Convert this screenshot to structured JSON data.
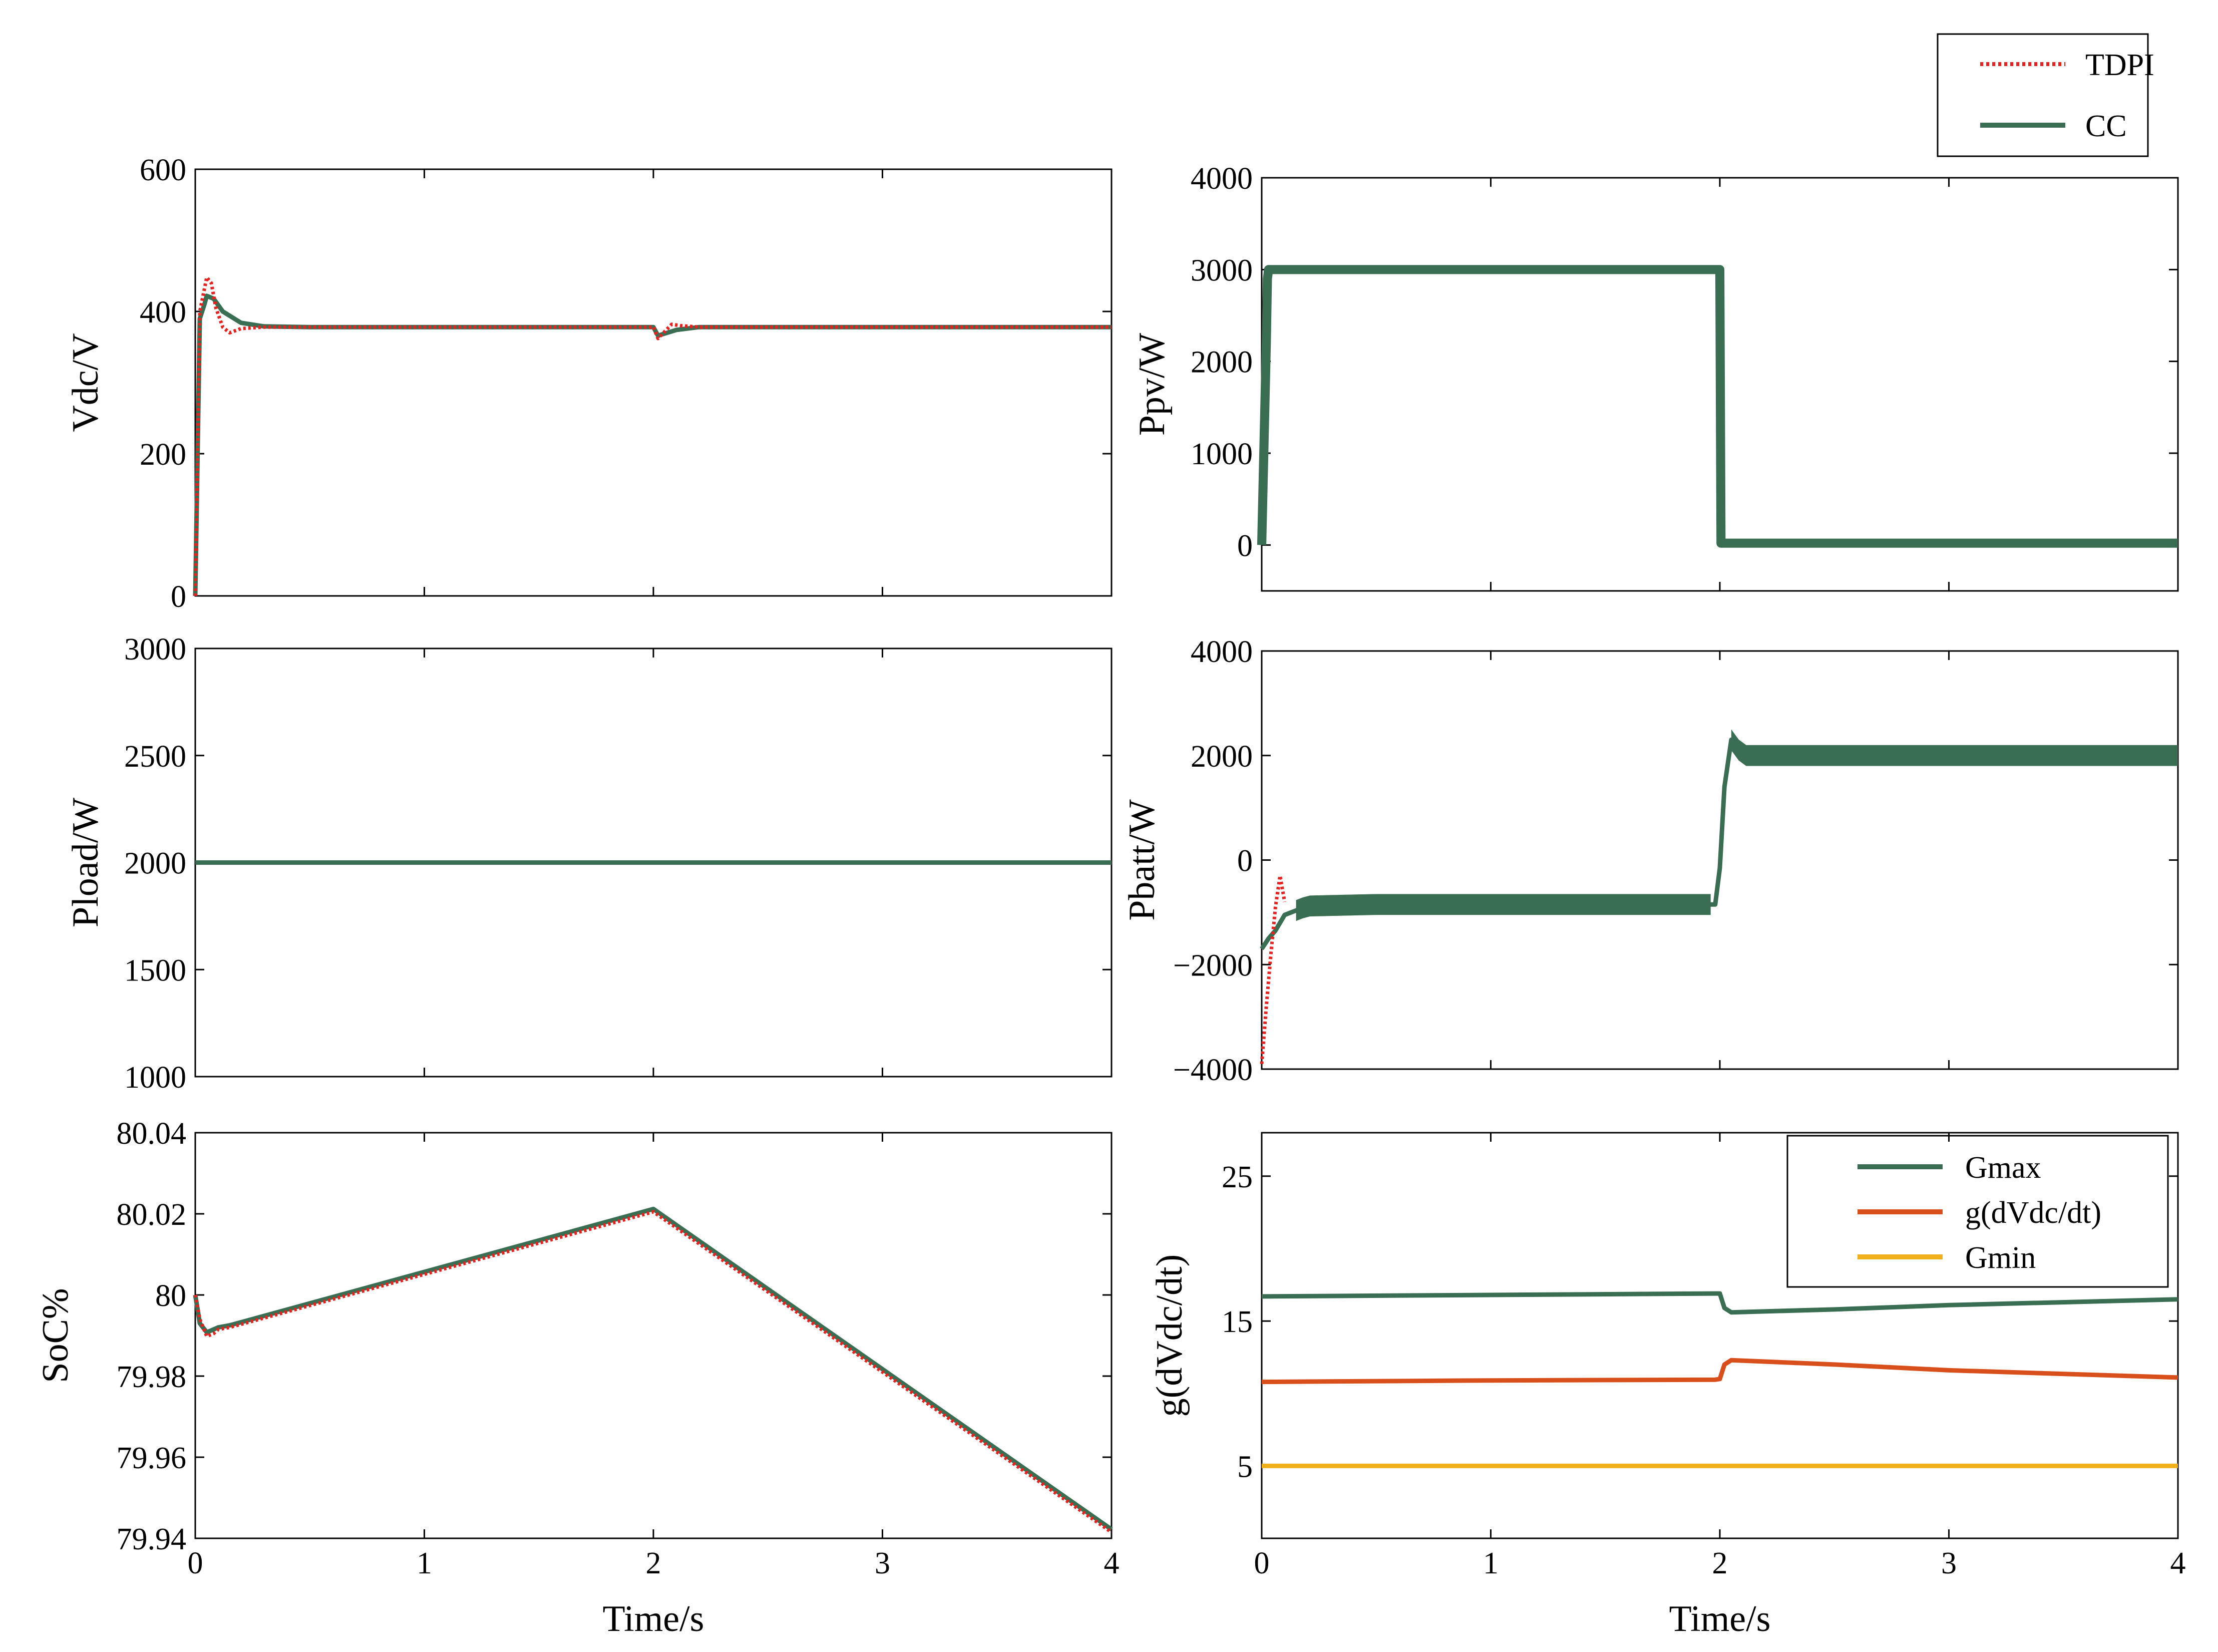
{
  "figure": {
    "legend": {
      "items": [
        {
          "name": "TDPI",
          "color": "#e8211e",
          "style": "dotted"
        },
        {
          "name": "CC",
          "color": "#3a6e52",
          "style": "solid"
        }
      ]
    },
    "colors": {
      "tdpi": "#e8211e",
      "cc": "#3a6e52",
      "gmax": "#3a6e52",
      "gdvdc": "#d94f1c",
      "gmin": "#f0b01c"
    }
  },
  "chart_data": [
    {
      "id": "vdc",
      "type": "line",
      "ylabel": "Vdc/V",
      "xlabel": "",
      "xlim": [
        0,
        4
      ],
      "ylim": [
        0,
        600
      ],
      "yticks": [
        0,
        200,
        400,
        600
      ],
      "xticks": [],
      "series": [
        {
          "name": "TDPI",
          "x": [
            0,
            0.02,
            0.04,
            0.05,
            0.07,
            0.09,
            0.12,
            0.15,
            0.2,
            0.3,
            0.5,
            1,
            1.5,
            1.98,
            2.0,
            2.02,
            2.05,
            2.08,
            2.12,
            2.2,
            3,
            4
          ],
          "y": [
            0,
            400,
            432,
            448,
            440,
            405,
            378,
            370,
            376,
            378,
            378,
            378,
            378,
            378,
            378,
            362,
            372,
            382,
            380,
            378,
            378,
            378
          ]
        },
        {
          "name": "CC",
          "x": [
            0,
            0.02,
            0.04,
            0.05,
            0.08,
            0.12,
            0.2,
            0.3,
            0.5,
            1,
            1.5,
            1.98,
            2.0,
            2.02,
            2.05,
            2.1,
            2.2,
            3,
            4
          ],
          "y": [
            0,
            390,
            410,
            422,
            418,
            400,
            384,
            379,
            378,
            378,
            378,
            378,
            378,
            366,
            369,
            374,
            378,
            378,
            378
          ]
        }
      ]
    },
    {
      "id": "ppv",
      "type": "line",
      "ylabel": "Ppv/W",
      "xlabel": "",
      "xlim": [
        0,
        4
      ],
      "ylim": [
        -500,
        4000
      ],
      "yticks": [
        0,
        1000,
        2000,
        3000,
        4000
      ],
      "xticks": [],
      "series": [
        {
          "name": "CC",
          "x": [
            0,
            0.02,
            0.025,
            0.03,
            0.05,
            0.1,
            2.0,
            2.005,
            4
          ],
          "y": [
            0,
            2200,
            2900,
            3000,
            3000,
            3000,
            3000,
            20,
            20
          ],
          "band": 25
        }
      ]
    },
    {
      "id": "pload",
      "type": "line",
      "ylabel": "Pload/W",
      "xlabel": "",
      "xlim": [
        0,
        4
      ],
      "ylim": [
        1000,
        3000
      ],
      "yticks": [
        1000,
        1500,
        2000,
        2500,
        3000
      ],
      "xticks": [],
      "series": [
        {
          "name": "CC",
          "x": [
            0,
            4
          ],
          "y": [
            2000,
            2000
          ]
        }
      ]
    },
    {
      "id": "pbatt",
      "type": "line",
      "ylabel": "Pbatt/W",
      "xlabel": "",
      "xlim": [
        0,
        4
      ],
      "ylim": [
        -4000,
        4000
      ],
      "yticks": [
        -4000,
        -2000,
        0,
        2000,
        4000
      ],
      "xticks": [],
      "series": [
        {
          "name": "TDPI",
          "x": [
            0,
            0.02,
            0.04,
            0.06,
            0.08,
            0.1
          ],
          "y": [
            -3900,
            -2800,
            -1800,
            -900,
            -300,
            -800
          ]
        },
        {
          "name": "CC",
          "x": [
            0,
            0.03,
            0.06,
            0.1,
            0.2,
            0.5,
            1,
            1.5,
            1.96,
            1.98,
            2.0,
            2.02,
            2.05,
            2.1,
            2.3,
            3,
            4
          ],
          "y": [
            -1700,
            -1500,
            -1350,
            -1050,
            -880,
            -850,
            -850,
            -850,
            -850,
            -850,
            -150,
            1400,
            2300,
            2000,
            2000,
            2000,
            2000
          ],
          "band": [
            0.15,
            1.96,
            400,
            2.05,
            4,
            400
          ]
        }
      ]
    },
    {
      "id": "soc",
      "type": "line",
      "ylabel": "SoC%",
      "xlabel": "Time/s",
      "xlim": [
        0,
        4
      ],
      "ylim": [
        79.94,
        80.04
      ],
      "yticks": [
        79.94,
        79.96,
        79.98,
        80,
        80.02,
        80.04
      ],
      "xticks": [
        0,
        1,
        2,
        3,
        4
      ],
      "series": [
        {
          "name": "TDPI",
          "x": [
            0,
            0.02,
            0.05,
            0.08,
            0.1,
            0.15,
            2.0,
            4
          ],
          "y": [
            80.0,
            79.994,
            79.9898,
            79.9905,
            79.9915,
            79.992,
            80.0205,
            79.9415
          ]
        },
        {
          "name": "CC",
          "x": [
            0,
            0.02,
            0.05,
            0.08,
            0.1,
            0.15,
            2.0,
            4
          ],
          "y": [
            80.0,
            79.993,
            79.9908,
            79.9915,
            79.992,
            79.9925,
            80.0212,
            79.9422
          ]
        }
      ]
    },
    {
      "id": "gdvdc",
      "type": "line",
      "ylabel": "g(dVdc/dt)",
      "xlabel": "Time/s",
      "xlim": [
        0,
        4
      ],
      "ylim": [
        0,
        28
      ],
      "yticks": [
        5,
        15,
        25
      ],
      "xticks": [
        0,
        1,
        2,
        3,
        4
      ],
      "legend": [
        "Gmax",
        "g(dVdc/dt)",
        "Gmin"
      ],
      "series": [
        {
          "name": "Gmax",
          "x": [
            0,
            1,
            1.98,
            2.0,
            2.02,
            2.05,
            2.5,
            3,
            4
          ],
          "y": [
            16.7,
            16.8,
            16.9,
            16.9,
            15.9,
            15.6,
            15.8,
            16.1,
            16.5
          ]
        },
        {
          "name": "g(dVdc/dt)",
          "x": [
            0,
            1,
            1.98,
            2.0,
            2.02,
            2.05,
            2.5,
            3,
            4
          ],
          "y": [
            10.8,
            10.9,
            10.95,
            11.0,
            12.0,
            12.3,
            12.0,
            11.6,
            11.1
          ]
        },
        {
          "name": "Gmin",
          "x": [
            0,
            4
          ],
          "y": [
            5,
            5
          ]
        }
      ]
    }
  ]
}
